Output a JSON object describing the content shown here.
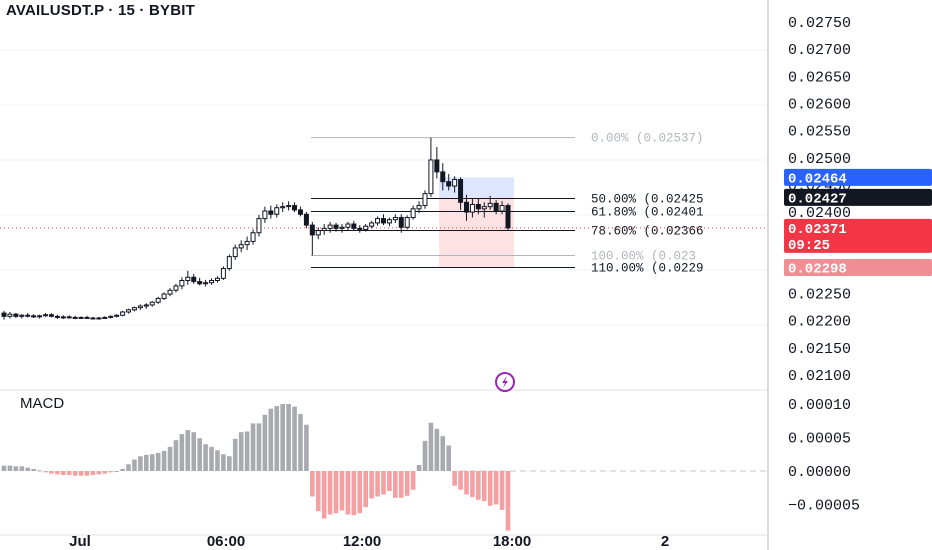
{
  "header": {
    "title": "AVAILUSDT.P · 15 · BYBIT"
  },
  "colors": {
    "up_hist": "#a9a9b0",
    "down_hist": "#f4a0a3",
    "candle": "#131722",
    "tag_blue": "#2962ff",
    "tag_black": "#131722",
    "tag_red": "#f23645",
    "tag_pink": "#f08e93",
    "fib_black": "#131722",
    "fib_gray": "#b2b5be",
    "long_box": "#dfe6ff",
    "short_box": "#fde1e3"
  },
  "macd_label": "MACD",
  "icons": [
    "lightning-icon"
  ],
  "chart_data": [
    {
      "type": "candlestick",
      "title": "AVAILUSDT.P · 15 · BYBIT",
      "y_axis_ticks": [
        "0.02750",
        "0.02700",
        "0.02650",
        "0.02600",
        "0.02550",
        "0.02500",
        "0.02450",
        "0.02400",
        "0.02250",
        "0.02200",
        "0.02150",
        "0.02100"
      ],
      "ylim": [
        0.0207,
        0.0278
      ],
      "x_axis_ticks": [
        "Jul",
        "06:00",
        "12:00",
        "18:00",
        "2"
      ],
      "price_tags": [
        {
          "label": "0.02464",
          "color": "#2962ff",
          "value": 0.02464
        },
        {
          "label": "0.02427",
          "color": "#131722",
          "value": 0.02427
        },
        {
          "label": "0.02371",
          "sub": "09:25",
          "color": "#f23645",
          "value": 0.02371
        },
        {
          "label": "0.02298",
          "color": "#f08e93",
          "value": 0.02298
        }
      ],
      "fib_levels": [
        {
          "label": "0.00% (0.02537)",
          "value": 0.02537,
          "color": "#b2b5be"
        },
        {
          "label": "50.00% (0.02425",
          "value": 0.02425,
          "color": "#131722"
        },
        {
          "label": "61.80% (0.02401",
          "value": 0.02401,
          "color": "#131722"
        },
        {
          "label": "78.60% (0.02366",
          "value": 0.02366,
          "color": "#131722"
        },
        {
          "label": "100.00% (0.023",
          "value": 0.0232,
          "color": "#b2b5be"
        },
        {
          "label": "110.00% (0.0229",
          "value": 0.02298,
          "color": "#131722"
        }
      ],
      "position_box": {
        "entry": 0.02427,
        "target": 0.02464,
        "stop": 0.02298
      },
      "ohlc": [
        [
          0.02214,
          0.02218,
          0.02202,
          0.02208
        ],
        [
          0.02208,
          0.02216,
          0.02204,
          0.02212
        ],
        [
          0.02212,
          0.02214,
          0.02205,
          0.02208
        ],
        [
          0.02208,
          0.02212,
          0.02204,
          0.0221
        ],
        [
          0.0221,
          0.02214,
          0.02206,
          0.02209
        ],
        [
          0.02209,
          0.02212,
          0.02205,
          0.02207
        ],
        [
          0.02207,
          0.02211,
          0.02204,
          0.02209
        ],
        [
          0.02209,
          0.02214,
          0.02207,
          0.02211
        ],
        [
          0.02211,
          0.02214,
          0.02206,
          0.02208
        ],
        [
          0.02208,
          0.02211,
          0.02203,
          0.02206
        ],
        [
          0.02206,
          0.0221,
          0.02203,
          0.02207
        ],
        [
          0.02207,
          0.0221,
          0.02204,
          0.02206
        ],
        [
          0.02206,
          0.02209,
          0.02203,
          0.02205
        ],
        [
          0.02205,
          0.02208,
          0.02203,
          0.02206
        ],
        [
          0.02206,
          0.02209,
          0.02204,
          0.02205
        ],
        [
          0.02205,
          0.02207,
          0.02203,
          0.02204
        ],
        [
          0.02204,
          0.02207,
          0.02202,
          0.02205
        ],
        [
          0.02205,
          0.02208,
          0.02203,
          0.02206
        ],
        [
          0.02206,
          0.0221,
          0.02204,
          0.02208
        ],
        [
          0.02208,
          0.02212,
          0.02206,
          0.0221
        ],
        [
          0.0221,
          0.02218,
          0.02208,
          0.02216
        ],
        [
          0.02216,
          0.02222,
          0.02213,
          0.0222
        ],
        [
          0.0222,
          0.02226,
          0.02217,
          0.02224
        ],
        [
          0.02224,
          0.0223,
          0.0222,
          0.02227
        ],
        [
          0.02227,
          0.02232,
          0.02222,
          0.02229
        ],
        [
          0.02229,
          0.02236,
          0.02226,
          0.02234
        ],
        [
          0.02234,
          0.02244,
          0.02231,
          0.02241
        ],
        [
          0.02241,
          0.02252,
          0.02238,
          0.02249
        ],
        [
          0.02249,
          0.0226,
          0.02245,
          0.02256
        ],
        [
          0.02256,
          0.02268,
          0.02252,
          0.02264
        ],
        [
          0.02264,
          0.0228,
          0.02258,
          0.02274
        ],
        [
          0.02274,
          0.02292,
          0.02266,
          0.0228
        ],
        [
          0.0228,
          0.02286,
          0.02268,
          0.02272
        ],
        [
          0.02272,
          0.02279,
          0.02265,
          0.02268
        ],
        [
          0.02268,
          0.02275,
          0.02263,
          0.0227
        ],
        [
          0.0227,
          0.02278,
          0.02266,
          0.02274
        ],
        [
          0.02274,
          0.02282,
          0.0227,
          0.02278
        ],
        [
          0.02278,
          0.023,
          0.02275,
          0.02296
        ],
        [
          0.02296,
          0.02322,
          0.02292,
          0.02318
        ],
        [
          0.02318,
          0.0234,
          0.02312,
          0.02334
        ],
        [
          0.02334,
          0.02348,
          0.02326,
          0.0234
        ],
        [
          0.0234,
          0.02355,
          0.0233,
          0.02346
        ],
        [
          0.02346,
          0.02368,
          0.0234,
          0.02362
        ],
        [
          0.02362,
          0.02395,
          0.02355,
          0.02388
        ],
        [
          0.02388,
          0.0241,
          0.0238,
          0.02402
        ],
        [
          0.02402,
          0.02412,
          0.02388,
          0.02396
        ],
        [
          0.02396,
          0.02414,
          0.0239,
          0.02408
        ],
        [
          0.02408,
          0.02418,
          0.024,
          0.0241
        ],
        [
          0.0241,
          0.0242,
          0.02403,
          0.02412
        ],
        [
          0.02412,
          0.02418,
          0.024,
          0.02404
        ],
        [
          0.02404,
          0.0241,
          0.02392,
          0.02396
        ],
        [
          0.02396,
          0.024,
          0.0237,
          0.02376
        ],
        [
          0.02376,
          0.02382,
          0.0232,
          0.02358
        ],
        [
          0.02358,
          0.02372,
          0.0235,
          0.02366
        ],
        [
          0.02366,
          0.02378,
          0.02358,
          0.0237
        ],
        [
          0.0237,
          0.02382,
          0.02362,
          0.02376
        ],
        [
          0.02376,
          0.0238,
          0.02364,
          0.0237
        ],
        [
          0.0237,
          0.02378,
          0.02362,
          0.02372
        ],
        [
          0.02372,
          0.02382,
          0.02366,
          0.02378
        ],
        [
          0.02378,
          0.02384,
          0.02366,
          0.0237
        ],
        [
          0.0237,
          0.02376,
          0.02362,
          0.02368
        ],
        [
          0.02368,
          0.02378,
          0.02364,
          0.02374
        ],
        [
          0.02374,
          0.02384,
          0.0237,
          0.0238
        ],
        [
          0.0238,
          0.02392,
          0.02375,
          0.02388
        ],
        [
          0.02388,
          0.02396,
          0.02376,
          0.0238
        ],
        [
          0.0238,
          0.0239,
          0.02374,
          0.02386
        ],
        [
          0.02386,
          0.02396,
          0.0238,
          0.0239
        ],
        [
          0.0239,
          0.02396,
          0.02362,
          0.02372
        ],
        [
          0.02372,
          0.02394,
          0.02368,
          0.0239
        ],
        [
          0.0239,
          0.02412,
          0.02386,
          0.02406
        ],
        [
          0.02406,
          0.0242,
          0.02398,
          0.02412
        ],
        [
          0.02412,
          0.0244,
          0.02406,
          0.02434
        ],
        [
          0.02434,
          0.02537,
          0.02428,
          0.02496
        ],
        [
          0.02496,
          0.0252,
          0.02462,
          0.02474
        ],
        [
          0.02474,
          0.0249,
          0.0244,
          0.02456
        ],
        [
          0.02456,
          0.0247,
          0.0244,
          0.02448
        ],
        [
          0.02448,
          0.02466,
          0.02436,
          0.0246
        ],
        [
          0.0246,
          0.02464,
          0.02404,
          0.02418
        ],
        [
          0.02418,
          0.02432,
          0.02384,
          0.024
        ],
        [
          0.024,
          0.02424,
          0.0239,
          0.02414
        ],
        [
          0.02414,
          0.02426,
          0.02396,
          0.02406
        ],
        [
          0.02406,
          0.02418,
          0.0239,
          0.0241
        ],
        [
          0.0241,
          0.0243,
          0.02404,
          0.02416
        ],
        [
          0.02416,
          0.02422,
          0.02396,
          0.02402
        ],
        [
          0.02402,
          0.0242,
          0.02396,
          0.02412
        ],
        [
          0.02412,
          0.02416,
          0.02366,
          0.02371
        ]
      ]
    },
    {
      "type": "bar",
      "title": "MACD",
      "y_axis_ticks": [
        "0.00010",
        "0.00005",
        "0.00000",
        "−0.00005"
      ],
      "ylim": [
        -9e-05,
        0.000112
      ],
      "values": [
        8e-06,
        8e-06,
        7e-06,
        7e-06,
        5e-06,
        3e-06,
        1e-06,
        -2e-06,
        -4e-06,
        -5e-06,
        -6e-06,
        -6e-06,
        -7e-06,
        -7e-06,
        -7e-06,
        -6e-06,
        -5e-06,
        -4e-06,
        -2e-06,
        0.0,
        3e-06,
        1e-05,
        1.7e-05,
        2.2e-05,
        2.4e-05,
        2.5e-05,
        2.7e-05,
        3e-05,
        3.6e-05,
        4.6e-05,
        5.5e-05,
        6.1e-05,
        5.8e-05,
        4.9e-05,
        4e-05,
        3.6e-05,
        3.1e-05,
        2.5e-05,
        2.2e-05,
        4.8e-05,
        5.8e-05,
        5.9e-05,
        7.1e-05,
        7.1e-05,
        8.4e-05,
        9.3e-05,
        9.7e-05,
        0.0001,
        0.0001,
        9.6e-05,
        8.5e-05,
        6.9e-05,
        -3.8e-05,
        -6e-05,
        -7.1e-05,
        -6.5e-05,
        -6.3e-05,
        -5.9e-05,
        -6.5e-05,
        -6.6e-05,
        -6.3e-05,
        -5.4e-05,
        -4.1e-05,
        -3.8e-05,
        -3.5e-05,
        -3e-05,
        -4e-05,
        -4e-05,
        -3.7e-05,
        -2.8e-05,
        9e-06,
        4.5e-05,
        7.2e-05,
        6.3e-05,
        5.2e-05,
        3.8e-05,
        -2.2e-05,
        -2.8e-05,
        -3.5e-05,
        -3.9e-05,
        -4.3e-05,
        -4.5e-05,
        -5.2e-05,
        -5e-05,
        -5.8e-05,
        -8.9e-05
      ]
    }
  ]
}
